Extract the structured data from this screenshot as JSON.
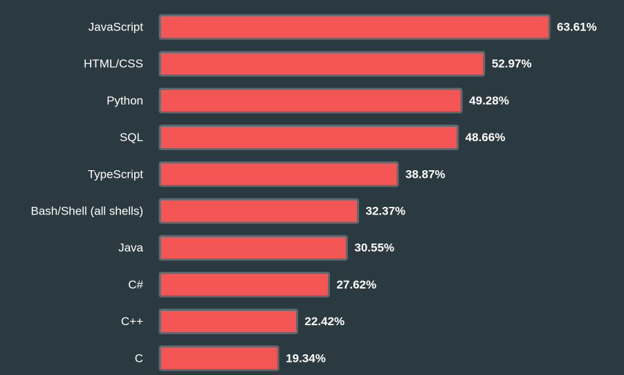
{
  "colors": {
    "background": "#2b3a40",
    "bar_fill": "#f45555",
    "bar_stroke": "#5c6a70",
    "text": "#ffffff"
  },
  "chart_data": {
    "type": "bar",
    "orientation": "horizontal",
    "categories": [
      "JavaScript",
      "HTML/CSS",
      "Python",
      "SQL",
      "TypeScript",
      "Bash/Shell (all shells)",
      "Java",
      "C#",
      "C++",
      "C"
    ],
    "values": [
      63.61,
      52.97,
      49.28,
      48.66,
      38.87,
      32.37,
      30.55,
      27.62,
      22.42,
      19.34
    ],
    "value_labels": [
      "63.61%",
      "52.97%",
      "49.28%",
      "48.66%",
      "38.87%",
      "32.37%",
      "30.55%",
      "27.62%",
      "22.42%",
      "19.34%"
    ],
    "unit": "%",
    "xlim": [
      0,
      63.61
    ],
    "grid": false,
    "legend": "none"
  }
}
